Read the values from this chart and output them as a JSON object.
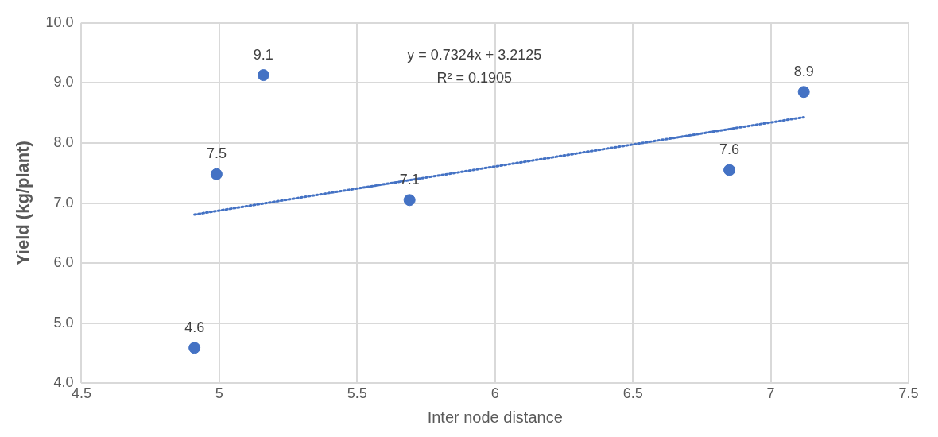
{
  "chart_data": {
    "type": "scatter",
    "xlabel": "Inter node distance",
    "ylabel": "Yield (kg/plant)",
    "xlim": [
      4.5,
      7.5
    ],
    "xticks": [
      4.5,
      5,
      5.5,
      6,
      6.5,
      7,
      7.5
    ],
    "ylim": [
      4,
      10
    ],
    "yticks": [
      {
        "value": 4,
        "label": "4.0"
      },
      {
        "value": 5,
        "label": "5.0"
      },
      {
        "value": 6,
        "label": "6.0"
      },
      {
        "value": 7,
        "label": "7.0"
      },
      {
        "value": 8,
        "label": "8.0"
      },
      {
        "value": 9,
        "label": "9.0"
      },
      {
        "value": 10,
        "label": "10.0"
      }
    ],
    "grid": true,
    "legend": false,
    "marker": "circle",
    "series": [
      {
        "color": "#4472c4",
        "x": [
          4.91,
          4.99,
          5.16,
          5.69,
          6.85,
          7.12
        ],
        "values": [
          4.59,
          7.48,
          9.13,
          7.05,
          7.55,
          8.85
        ],
        "value_labels": [
          "4.6",
          "7.5",
          "9.1",
          "7.1",
          "7.6",
          "8.9"
        ]
      },
      {
        "type": "line",
        "color": "#4472c4",
        "line_style": "dotted",
        "marker": "none",
        "x": [
          4.91,
          7.12
        ],
        "values": [
          6.81,
          8.43
        ]
      }
    ],
    "annotations": [
      "y = 0.7324x + 3.2125",
      "R² = 0.1905"
    ]
  }
}
